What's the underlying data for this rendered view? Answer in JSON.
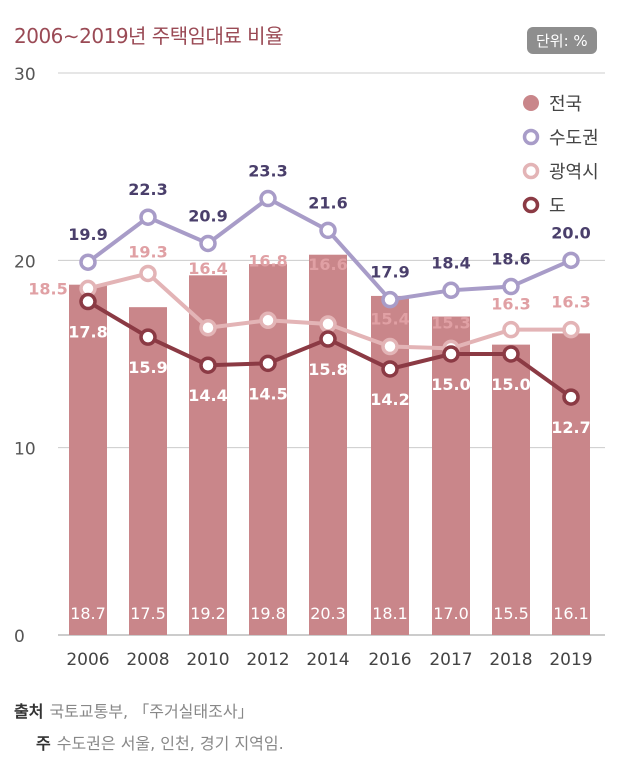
{
  "chart_data": {
    "type": "bar+line",
    "title": "2006∼2019년 주택임대료 비율",
    "unit": "단위: %",
    "categories": [
      "2006",
      "2008",
      "2010",
      "2012",
      "2014",
      "2016",
      "2017",
      "2018",
      "2019"
    ],
    "ylim": [
      0,
      30
    ],
    "yticks": [
      "0",
      "10",
      "20",
      "30"
    ],
    "grid": true,
    "legend_position": "top-right",
    "series": [
      {
        "name": "전국",
        "type": "bar",
        "color": "#c9868a",
        "values": [
          18.7,
          17.5,
          19.2,
          19.8,
          20.3,
          18.1,
          17.0,
          15.5,
          16.1
        ],
        "labels": [
          "18.7",
          "17.5",
          "19.2",
          "19.8",
          "20.3",
          "18.1",
          "17.0",
          "15.5",
          "16.1"
        ]
      },
      {
        "name": "수도권",
        "type": "line",
        "color": "#a89cc8",
        "values": [
          19.9,
          22.3,
          20.9,
          23.3,
          21.6,
          17.9,
          18.4,
          18.6,
          20.0
        ],
        "labels": [
          "19.9",
          "22.3",
          "20.9",
          "23.3",
          "21.6",
          "17.9",
          "18.4",
          "18.6",
          "20.0"
        ]
      },
      {
        "name": "광역시",
        "type": "line",
        "color": "#e3b4b6",
        "values": [
          18.5,
          19.3,
          16.4,
          16.8,
          16.6,
          15.4,
          15.3,
          16.3,
          16.3
        ],
        "labels": [
          "18.5",
          "19.3",
          "16.4",
          "16.8",
          "16.6",
          "15.4",
          "15.3",
          "16.3",
          "16.3"
        ]
      },
      {
        "name": "도",
        "type": "line",
        "color": "#8b3a44",
        "values": [
          17.8,
          15.9,
          14.4,
          14.5,
          15.8,
          14.2,
          15.0,
          15.0,
          12.7
        ],
        "labels": [
          "17.8",
          "15.9",
          "14.4",
          "14.5",
          "15.8",
          "14.2",
          "15.0",
          "15.0",
          "12.7"
        ]
      }
    ]
  },
  "footer": {
    "source_label": "출처",
    "source_text": "국토교통부, 「주거실태조사」",
    "note_label": "주",
    "note_text": "수도권은 서울, 인천, 경기 지역임."
  }
}
